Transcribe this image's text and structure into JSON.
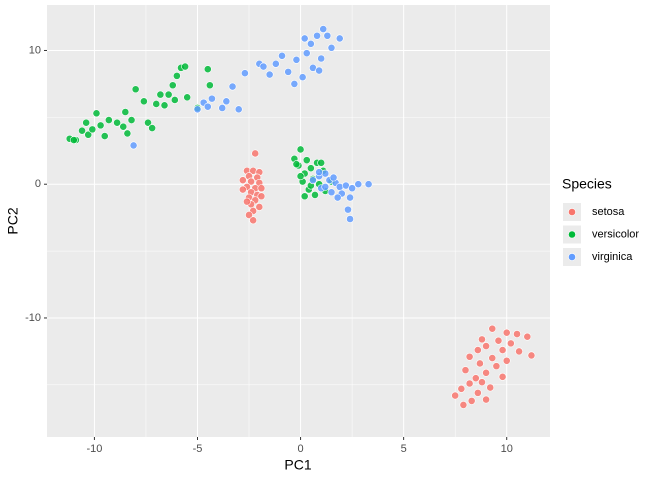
{
  "chart_data": {
    "type": "scatter",
    "x_label": "PC1",
    "y_label": "PC2",
    "legend_title": "Species",
    "xlim": [
      -12.3,
      12.1
    ],
    "ylim": [
      -18.9,
      13.4
    ],
    "xticks": [
      -10,
      -5,
      0,
      5,
      10
    ],
    "yticks": [
      -10,
      0,
      10
    ],
    "grid": true,
    "legend": "right",
    "series": [
      {
        "name": "setosa",
        "color": "#F8766D",
        "x": [
          -2.2,
          -2.6,
          -2.3,
          -2.0,
          -2.5,
          -2.1,
          -2.8,
          -2.4,
          -2.0,
          -2.6,
          -2.2,
          -1.9,
          -2.8,
          -2.4,
          -2.1,
          -2.5,
          -2.2,
          -2.4,
          -2.0,
          -2.3,
          -2.5,
          -2.3,
          -1.9,
          -2.6,
          9.3,
          10.0,
          10.5,
          11.0,
          8.8,
          9.6,
          10.2,
          9.0,
          8.6,
          9.8,
          10.6,
          11.2,
          8.2,
          9.3,
          10.0,
          8.7,
          9.5,
          8.0,
          9.0,
          8.5,
          9.8,
          8.2,
          7.8,
          9.2,
          8.6,
          7.5,
          8.3,
          7.9,
          9.0,
          8.8
        ],
        "values": [
          2.3,
          1.0,
          1.0,
          0.9,
          0.6,
          0.5,
          0.3,
          0.2,
          0.1,
          -0.2,
          -0.3,
          -0.3,
          -0.4,
          -0.6,
          -0.8,
          -1.0,
          -1.2,
          -1.5,
          -1.7,
          -2.0,
          -2.3,
          -2.7,
          -0.9,
          -1.3,
          -10.8,
          -11.1,
          -11.2,
          -11.4,
          -11.6,
          -11.7,
          -11.9,
          -12.1,
          -12.4,
          -12.4,
          -12.5,
          -12.8,
          -12.9,
          -13.0,
          -13.2,
          -13.4,
          -13.6,
          -13.9,
          -14.1,
          -14.5,
          -14.4,
          -14.9,
          -15.3,
          -15.2,
          -15.6,
          -15.8,
          -16.2,
          -16.5,
          -16.1,
          -14.8
        ]
      },
      {
        "name": "versicolor",
        "color": "#00BA38",
        "x": [
          -11.2,
          -10.9,
          -10.3,
          -10.6,
          -10.1,
          -10.4,
          -9.7,
          -9.9,
          -9.3,
          -9.5,
          -8.9,
          -8.6,
          -8.5,
          -8.2,
          -8.4,
          -8.0,
          -7.6,
          -7.4,
          -7.2,
          -7.0,
          -6.8,
          -6.6,
          -6.4,
          -6.2,
          -6.0,
          -5.8,
          -5.6,
          -6.1,
          -5.5,
          -4.5,
          -5.0,
          -4.4,
          -11.0,
          -0.3,
          0,
          0.3,
          -0.1,
          0.5,
          0.2,
          0.8,
          0.6,
          1.1,
          0.1,
          0.9,
          0.4,
          1.2,
          0.7,
          0.2,
          1.5,
          1.0,
          0.0,
          0.5,
          -0.2
        ],
        "values": [
          3.4,
          3.3,
          3.7,
          4.0,
          4.1,
          4.6,
          4.4,
          5.3,
          4.8,
          3.6,
          4.6,
          4.3,
          5.4,
          4.8,
          3.8,
          7.1,
          6.2,
          4.6,
          4.2,
          6.0,
          6.7,
          5.9,
          6.7,
          7.4,
          8.1,
          8.7,
          8.8,
          6.3,
          6.5,
          8.6,
          5.7,
          7.4,
          3.3,
          1.9,
          2.6,
          1.8,
          1.4,
          1.2,
          0.8,
          1.6,
          0.4,
          1.0,
          0.2,
          0.0,
          -0.4,
          -0.5,
          -0.8,
          -0.9,
          0.2,
          1.6,
          0.6,
          -0.1,
          1.5
        ]
      },
      {
        "name": "virginica",
        "color": "#619CFF",
        "x": [
          -8.1,
          -5.0,
          -4.7,
          -4.5,
          -4.3,
          -3.8,
          -3.6,
          -3.3,
          -3.0,
          -2.7,
          -2.0,
          -1.8,
          -1.5,
          -1.2,
          -0.9,
          -0.6,
          -0.3,
          0.1,
          0.3,
          0.5,
          0.8,
          0.6,
          1.0,
          1.3,
          1.5,
          1.9,
          1.1,
          0.2,
          -0.2,
          0.9,
          0.6,
          0.9,
          1.2,
          1.4,
          1.7,
          1.9,
          2.2,
          2.5,
          2.8,
          3.3,
          1.0,
          1.5,
          2.0,
          2.4,
          2.3,
          2.4,
          1.8,
          1.2,
          0.9,
          1.6
        ],
        "values": [
          2.9,
          5.6,
          6.1,
          5.8,
          6.4,
          5.7,
          6.2,
          7.3,
          5.6,
          8.3,
          9.0,
          8.8,
          8.2,
          9.0,
          9.6,
          8.4,
          7.5,
          8.0,
          9.8,
          10.5,
          11.1,
          8.7,
          9.4,
          11.1,
          10.2,
          10.9,
          11.6,
          10.9,
          9.3,
          8.5,
          0.3,
          0.6,
          0.8,
          0.3,
          0.1,
          -0.2,
          -0.1,
          -0.3,
          0.0,
          0.0,
          -0.3,
          -0.6,
          -0.7,
          -1.0,
          -1.9,
          -2.6,
          -1.0,
          -0.2,
          0.9,
          0.5
        ]
      }
    ]
  }
}
